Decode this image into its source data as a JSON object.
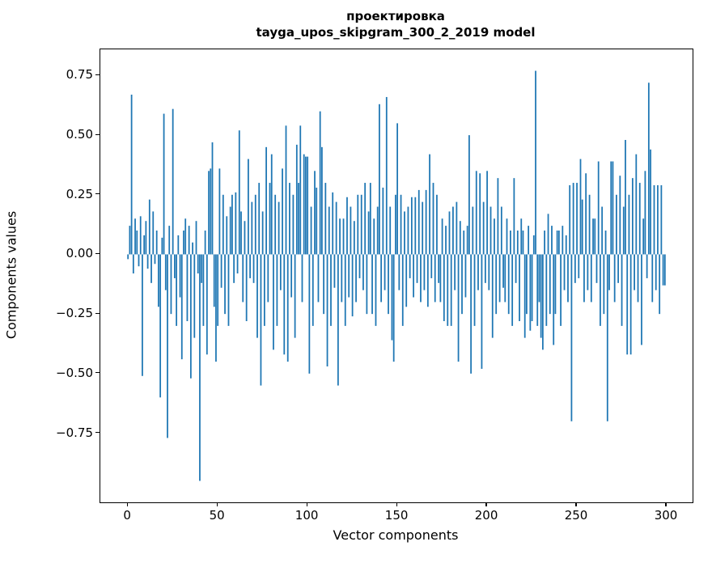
{
  "figure": {
    "title_line1": "проектировка",
    "title_line2": "tayga_upos_skipgram_300_2_2019 model",
    "xlabel": "Vector components",
    "ylabel": "Components values"
  },
  "chart_data": {
    "type": "bar",
    "title": "проектировка — tayga_upos_skipgram_300_2_2019 model",
    "xlabel": "Vector components",
    "ylabel": "Components values",
    "grid": false,
    "legend": "none",
    "bar_color": "#1f77b4",
    "bar_width": 0.8,
    "xlim": [
      -15.4,
      314.4
    ],
    "ylim": [
      -1.04,
      0.86
    ],
    "xticks": [
      0,
      50,
      100,
      150,
      200,
      250,
      300
    ],
    "xtick_labels": [
      "0",
      "50",
      "100",
      "150",
      "200",
      "250",
      "300"
    ],
    "yticks": [
      -0.75,
      -0.5,
      -0.25,
      0,
      0.25,
      0.5,
      0.75
    ],
    "ytick_labels": [
      "−0.75",
      "−0.50",
      "−0.25",
      "0.00",
      "0.25",
      "0.50",
      "0.75"
    ],
    "x_start": 0,
    "values": [
      -0.02,
      0.12,
      0.67,
      -0.08,
      0.15,
      0.1,
      -0.05,
      0.16,
      -0.51,
      0.08,
      0.14,
      -0.06,
      0.23,
      -0.12,
      0.18,
      -0.04,
      0.1,
      -0.22,
      -0.6,
      0.07,
      0.59,
      -0.15,
      -0.77,
      0.12,
      -0.25,
      0.61,
      -0.1,
      -0.3,
      0.08,
      -0.18,
      -0.44,
      0.1,
      0.15,
      -0.28,
      0.12,
      -0.52,
      0.05,
      -0.35,
      0.14,
      -0.08,
      -0.95,
      -0.12,
      -0.3,
      0.1,
      -0.42,
      0.35,
      0.36,
      0.47,
      -0.22,
      -0.45,
      -0.3,
      0.36,
      -0.14,
      0.25,
      -0.25,
      0.16,
      -0.3,
      0.2,
      0.25,
      -0.12,
      0.26,
      -0.08,
      0.52,
      0.18,
      -0.2,
      0.14,
      -0.28,
      0.4,
      -0.1,
      0.22,
      -0.12,
      0.25,
      -0.35,
      0.3,
      -0.55,
      0.18,
      -0.3,
      0.45,
      -0.2,
      0.3,
      0.42,
      -0.4,
      0.25,
      -0.3,
      0.22,
      -0.15,
      0.36,
      -0.42,
      0.54,
      -0.45,
      0.3,
      -0.18,
      0.25,
      -0.35,
      0.46,
      0.3,
      0.54,
      -0.2,
      0.42,
      0.41,
      0.41,
      -0.5,
      0.2,
      -0.3,
      0.35,
      0.28,
      -0.2,
      0.6,
      0.45,
      -0.25,
      0.3,
      -0.47,
      0.2,
      -0.3,
      0.26,
      -0.14,
      0.22,
      -0.55,
      0.15,
      -0.2,
      0.15,
      -0.3,
      0.24,
      -0.18,
      0.2,
      -0.26,
      0.14,
      -0.2,
      0.25,
      -0.1,
      0.25,
      -0.15,
      0.3,
      -0.25,
      0.18,
      0.3,
      -0.25,
      0.15,
      -0.3,
      0.2,
      0.63,
      -0.2,
      0.28,
      -0.15,
      0.66,
      -0.25,
      0.2,
      -0.36,
      -0.45,
      0.25,
      0.55,
      -0.15,
      0.25,
      -0.3,
      0.18,
      -0.22,
      0.2,
      -0.1,
      0.24,
      -0.18,
      0.24,
      -0.12,
      0.27,
      -0.2,
      0.22,
      -0.15,
      0.27,
      -0.22,
      0.42,
      -0.1,
      0.3,
      -0.2,
      0.25,
      -0.12,
      -0.2,
      0.15,
      -0.28,
      0.12,
      -0.3,
      0.18,
      -0.3,
      0.2,
      -0.15,
      0.22,
      -0.45,
      0.14,
      -0.25,
      0.1,
      -0.18,
      0.12,
      0.5,
      -0.5,
      0.2,
      -0.3,
      0.35,
      -0.15,
      0.34,
      -0.48,
      0.22,
      -0.12,
      0.35,
      -0.15,
      0.2,
      -0.35,
      0.15,
      -0.25,
      0.32,
      -0.2,
      0.2,
      -0.14,
      -0.2,
      0.15,
      -0.25,
      0.1,
      -0.3,
      0.32,
      -0.12,
      0.1,
      -0.28,
      0.15,
      0.1,
      -0.35,
      -0.25,
      0.12,
      -0.32,
      -0.28,
      0.08,
      0.77,
      -0.3,
      -0.2,
      -0.35,
      -0.4,
      0.1,
      -0.3,
      0.17,
      -0.25,
      0.12,
      -0.38,
      -0.25,
      0.1,
      0.1,
      -0.3,
      0.12,
      -0.15,
      0.08,
      -0.2,
      0.29,
      -0.7,
      0.3,
      -0.12,
      0.3,
      -0.1,
      0.4,
      0.23,
      -0.2,
      0.34,
      -0.15,
      0.25,
      -0.2,
      0.15,
      0.15,
      -0.12,
      0.39,
      -0.3,
      0.2,
      -0.25,
      0.1,
      -0.7,
      -0.15,
      0.39,
      0.39,
      -0.2,
      0.25,
      -0.12,
      0.33,
      -0.3,
      0.2,
      0.48,
      -0.42,
      0.25,
      -0.42,
      0.32,
      -0.15,
      0.42,
      -0.2,
      0.3,
      -0.38,
      0.15,
      0.35,
      -0.1,
      0.72,
      0.44,
      -0.2,
      0.29,
      -0.15,
      0.29,
      -0.25,
      0.29,
      -0.13,
      -0.13
    ]
  }
}
